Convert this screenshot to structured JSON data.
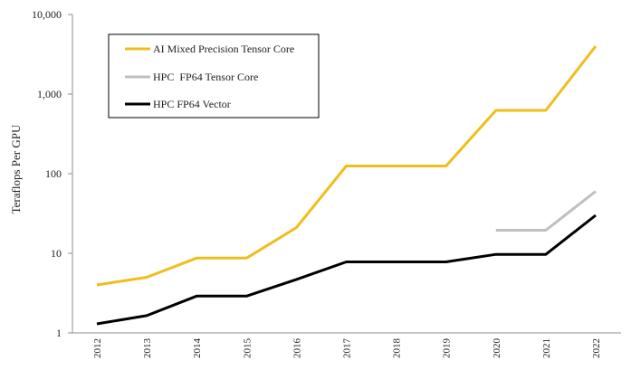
{
  "chart_data": {
    "type": "line",
    "title": "",
    "xlabel": "",
    "ylabel": "Teraflops Per GPU",
    "yscale": "log",
    "ylim": [
      1,
      10000
    ],
    "grid": false,
    "legend_position": "top-left",
    "categories": [
      "2012",
      "2013",
      "2014",
      "2015",
      "2016",
      "2017",
      "2018",
      "2019",
      "2020",
      "2021",
      "2022"
    ],
    "yticks": [
      {
        "value": 1,
        "label": "1"
      },
      {
        "value": 10,
        "label": "10"
      },
      {
        "value": 100,
        "label": "100"
      },
      {
        "value": 1000,
        "label": "1,000"
      },
      {
        "value": 10000,
        "label": "10,000"
      }
    ],
    "series": [
      {
        "name": "AI Mixed Precision Tensor Core",
        "color": "#f0be1a",
        "values": [
          4,
          5,
          8.7,
          8.7,
          21,
          125,
          125,
          125,
          624,
          624,
          4000
        ]
      },
      {
        "name": "HPC  FP64 Tensor Core",
        "color": "#bfbfbf",
        "values": [
          null,
          null,
          null,
          null,
          null,
          null,
          null,
          null,
          19.5,
          19.5,
          60
        ]
      },
      {
        "name": "HPC FP64 Vector",
        "color": "#000000",
        "values": [
          1.3,
          1.65,
          2.9,
          2.9,
          4.7,
          7.8,
          7.8,
          7.8,
          9.7,
          9.7,
          30
        ]
      }
    ]
  }
}
